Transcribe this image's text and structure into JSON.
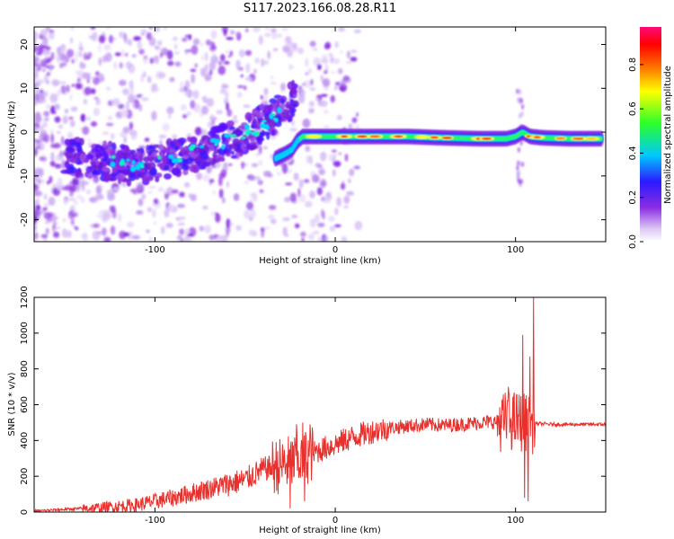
{
  "title": "S117.2023.166.08.28.R11",
  "colors": {
    "snr_line": "#e8302c",
    "axis": "#000000",
    "background": "#ffffff"
  },
  "chart_data": [
    {
      "type": "heatmap",
      "title": "",
      "xlabel": "Height of straight line (km)",
      "ylabel": "Frequency (Hz)",
      "xlim": [
        -167,
        150
      ],
      "ylim": [
        -25,
        24
      ],
      "xticks": [
        -100,
        0,
        100
      ],
      "yticks": [
        -20,
        -10,
        0,
        10,
        20
      ],
      "colorbar": {
        "label": "Normalized spectral amplitude",
        "range": [
          0.0,
          0.97
        ],
        "ticks": [
          0.0,
          0.2,
          0.4,
          0.6,
          0.8
        ],
        "colormap": "rainbow (white-violet-blue-cyan-green-yellow-red-magenta)"
      },
      "ridge": {
        "description": "dominant frequency trace",
        "segments": [
          {
            "x": [
              -167,
              -140,
              -120,
              -110,
              -100,
              -85,
              -70,
              -55,
              -45,
              -38,
              -33,
              -30,
              -26,
              -22
            ],
            "y": [
              -5,
              -6,
              -7,
              -8,
              -7,
              -5.5,
              -3.5,
              -1.5,
              0.5,
              2.5,
              4,
              5,
              6,
              8
            ]
          },
          {
            "x": [
              -33,
              -28,
              -24,
              -21,
              -18,
              -10,
              0,
              20,
              40,
              60,
              80,
              95,
              100,
              104,
              108,
              115,
              130,
              148
            ],
            "y": [
              -6,
              -5,
              -4,
              -2,
              -1,
              -1,
              -1,
              -1,
              -1,
              -1.3,
              -1.5,
              -1.5,
              -1,
              0,
              -1,
              -1.3,
              -1.5,
              -1.5
            ]
          }
        ]
      },
      "grid": false,
      "legend": "none"
    },
    {
      "type": "line",
      "title": "",
      "xlabel": "Height of straight line (km)",
      "ylabel": "SNR (10 * v/v)",
      "xlim": [
        -167,
        150
      ],
      "ylim": [
        0,
        1200
      ],
      "xticks": [
        -100,
        0,
        100
      ],
      "yticks": [
        0,
        200,
        400,
        600,
        800,
        1000,
        1200
      ],
      "series": [
        {
          "baseline": {
            "x": [
              -167,
              -150,
              -130,
              -110,
              -90,
              -70,
              -50,
              -40,
              -30,
              -20,
              -10,
              0,
              10,
              20,
              30,
              40,
              50,
              60,
              70,
              80,
              90,
              100,
              104,
              108,
              111,
              120,
              150
            ],
            "y": [
              5,
              15,
              25,
              40,
              80,
              130,
              180,
              240,
              260,
              290,
              340,
              380,
              420,
              450,
              470,
              480,
              490,
              485,
              490,
              500,
              505,
              510,
              505,
              490,
              495,
              490,
              490
            ]
          },
          "spikes": [
            {
              "x": -21.5,
              "y": 490
            },
            {
              "x": -18,
              "y": 500
            },
            {
              "x": -14,
              "y": 490
            },
            {
              "x": -25,
              "y": 20
            },
            {
              "x": -17,
              "y": 60
            },
            {
              "x": 96,
              "y": 700
            },
            {
              "x": 104,
              "y": 990
            },
            {
              "x": 105,
              "y": 80
            },
            {
              "x": 107,
              "y": 60
            },
            {
              "x": 108,
              "y": 870
            },
            {
              "x": 110,
              "y": 1200
            }
          ]
        }
      ],
      "grid": false,
      "legend": "none"
    }
  ]
}
